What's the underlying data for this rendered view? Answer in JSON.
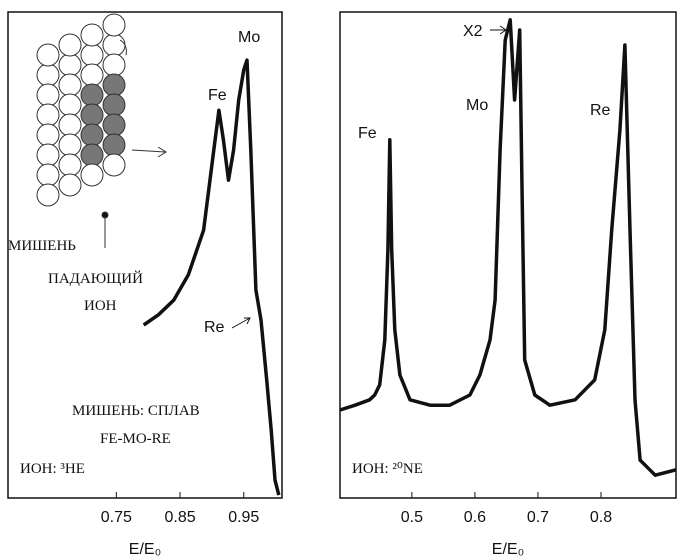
{
  "chart_data": [
    {
      "type": "line",
      "xlabel": "E/E₀",
      "xlim": [
        0.58,
        1.01
      ],
      "ylim": [
        0,
        100
      ],
      "xticks": [
        0.75,
        0.85,
        0.95
      ],
      "color": "#111111",
      "x": [
        0.793,
        0.816,
        0.84,
        0.863,
        0.887,
        0.903,
        0.911,
        0.918,
        0.926,
        0.934,
        0.942,
        0.95,
        0.955,
        0.961,
        0.969,
        0.977,
        0.986,
        0.993,
        0.999,
        1.005
      ],
      "values": [
        35.6,
        37.7,
        40.7,
        45.9,
        55.1,
        71.6,
        79.8,
        73.7,
        65.4,
        71.6,
        81.9,
        88.1,
        90.1,
        71.6,
        42.8,
        36.6,
        24.3,
        14.0,
        3.7,
        0.6
      ],
      "annotations": [
        "Mo",
        "Fe",
        "Re",
        "МИШЕНЬ",
        "ПАДАЮЩИЙ",
        "ИОН",
        "МИШЕНЬ: СПЛАВ",
        "FE-MO-RE",
        "ИОН: ³HE"
      ]
    },
    {
      "type": "line",
      "xlabel": "E/E₀",
      "xlim": [
        0.386,
        0.919
      ],
      "ylim": [
        0,
        100
      ],
      "xticks": [
        0.5,
        0.6,
        0.7,
        0.8
      ],
      "color": "#111111",
      "x": [
        0.386,
        0.41,
        0.433,
        0.441,
        0.449,
        0.457,
        0.462,
        0.465,
        0.468,
        0.473,
        0.481,
        0.497,
        0.529,
        0.56,
        0.592,
        0.608,
        0.624,
        0.632,
        0.64,
        0.648,
        0.656,
        0.663,
        0.671,
        0.675,
        0.679,
        0.695,
        0.719,
        0.759,
        0.79,
        0.806,
        0.817,
        0.83,
        0.838,
        0.846,
        0.854,
        0.862,
        0.886,
        0.919
      ],
      "values": [
        18.1,
        19.1,
        20.2,
        21.2,
        23.3,
        32.5,
        51.0,
        73.7,
        51.0,
        34.6,
        25.3,
        20.2,
        19.1,
        19.1,
        21.2,
        25.3,
        32.5,
        40.7,
        71.6,
        94.2,
        98.4,
        81.9,
        96.3,
        61.3,
        28.4,
        21.2,
        19.1,
        20.2,
        24.3,
        34.6,
        55.1,
        75.7,
        93.2,
        55.1,
        20.2,
        7.8,
        4.7,
        5.8
      ],
      "annotations": [
        "Fe",
        "Mo",
        "X2",
        "Re",
        "ИОН: ²⁰NE"
      ]
    }
  ]
}
